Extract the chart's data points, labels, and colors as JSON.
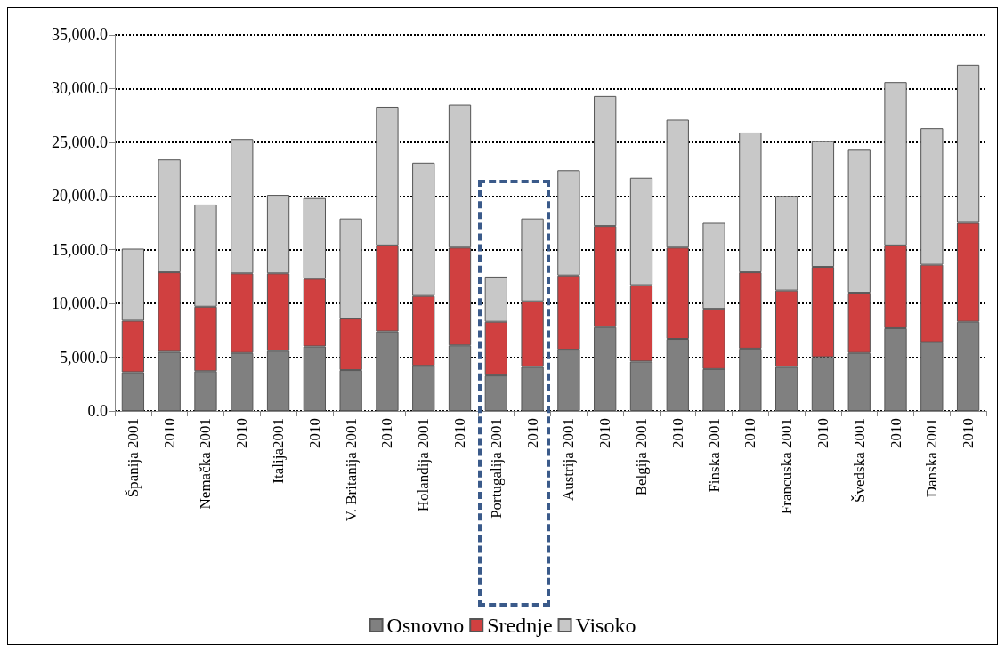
{
  "chart_data": {
    "type": "bar",
    "stacked": true,
    "categories": [
      "Španija 2001",
      "2010",
      "Nemačka 2001",
      "2010",
      "Italija2001",
      "2010",
      "V. Britanija 2001",
      "2010",
      "Holandija 2001",
      "2010",
      "Portugalija 2001",
      "2010",
      "Austrija 2001",
      "2010",
      "Belgija 2001",
      "2010",
      "Finska 2001",
      "2010",
      "Francuska 2001",
      "2010",
      "Švedska 2001",
      "2010",
      "Danska 2001",
      "2010"
    ],
    "series": [
      {
        "name": "Osnovno",
        "color": "#808080",
        "values": [
          3600,
          5500,
          3700,
          5400,
          5600,
          6000,
          3800,
          7400,
          4200,
          6100,
          3300,
          4100,
          5700,
          7800,
          4600,
          6700,
          3900,
          5800,
          4100,
          5000,
          5400,
          7700,
          6400,
          8300
        ]
      },
      {
        "name": "Srednje",
        "color": "#d04040",
        "values": [
          4800,
          7400,
          6000,
          7400,
          7200,
          6300,
          4800,
          8000,
          6500,
          9100,
          5000,
          6100,
          6900,
          9400,
          7100,
          8500,
          5600,
          7100,
          7100,
          8400,
          5600,
          7700,
          7200,
          9200
        ]
      },
      {
        "name": "Visoko",
        "color": "#c8c8c8",
        "values": [
          6700,
          10500,
          9500,
          12500,
          7300,
          7500,
          9300,
          12900,
          12400,
          13300,
          4200,
          7700,
          9800,
          12100,
          10000,
          11900,
          8000,
          13000,
          8800,
          11700,
          13300,
          15200,
          12700,
          14700
        ]
      }
    ],
    "ylim": [
      0,
      35000
    ],
    "yticks": [
      {
        "value": 0,
        "label": "0.0"
      },
      {
        "value": 5000,
        "label": "5,000.0"
      },
      {
        "value": 10000,
        "label": "10,000.0"
      },
      {
        "value": 15000,
        "label": "15,000.0"
      },
      {
        "value": 20000,
        "label": "20,000.0"
      },
      {
        "value": 25000,
        "label": "25,000.0"
      },
      {
        "value": 30000,
        "label": "30,000.0"
      },
      {
        "value": 35000,
        "label": "35,000.0"
      }
    ],
    "grid": "y",
    "legend": "bottom"
  }
}
